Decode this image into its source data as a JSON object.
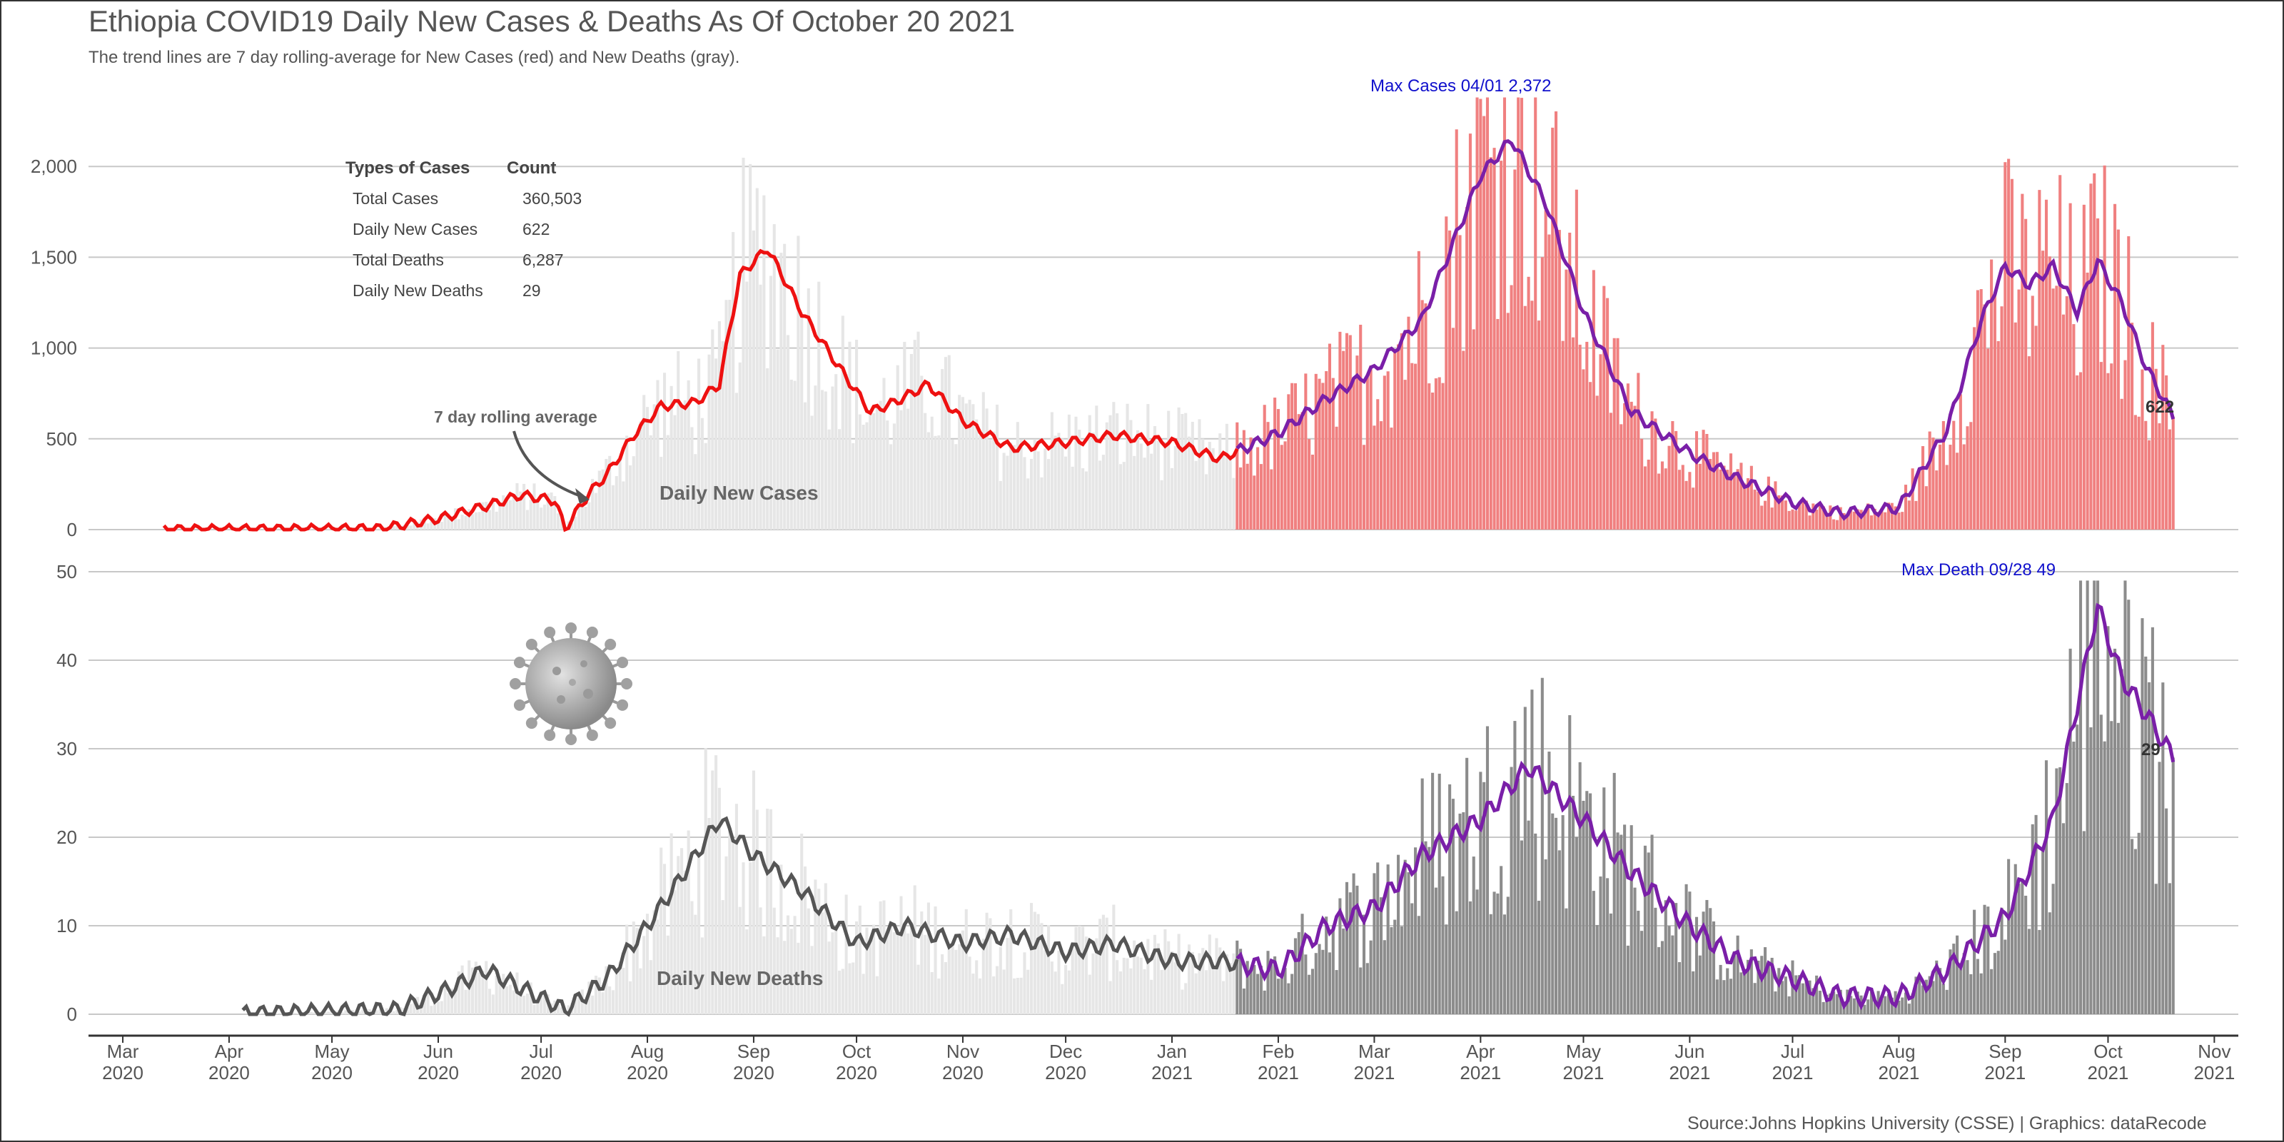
{
  "header": {
    "title": "Ethiopia COVID19 Daily New Cases & Deaths As Of October 20 2021",
    "subtitle": "The trend lines are 7 day rolling-average for New Cases (red) and New Deaths (gray)."
  },
  "summary_table": {
    "headers": [
      "Types of Cases",
      "Count"
    ],
    "rows": [
      {
        "label": "Total Cases",
        "value": "360,503"
      },
      {
        "label": "Daily New Cases",
        "value": "622"
      },
      {
        "label": "Total Deaths",
        "value": "6,287"
      },
      {
        "label": "Daily New Deaths",
        "value": "29"
      }
    ]
  },
  "annotations": {
    "max_cases": "Max Cases 04/01  2,372",
    "max_death": "Max Death 09/28  49",
    "rolling_avg": "7 day rolling average",
    "cases_label": "Daily New Cases",
    "deaths_label": "Daily New Deaths",
    "last_cases": "622",
    "last_deaths": "29"
  },
  "footer": {
    "source": "Source:Johns Hopkins University (CSSE) | Graphics: dataRecode"
  },
  "colors": {
    "cases_bar_recent": "#f08080",
    "cases_bar_old": "#e6e6e6",
    "cases_line_old": "#ee1111",
    "trend_recent": "#7a1fa8",
    "deaths_bar_recent": "#8c8c8c",
    "deaths_line_old": "#555555",
    "annotation_blue": "#1010cc"
  },
  "icons": {
    "virus": "coronavirus-icon"
  },
  "chart_data": [
    {
      "type": "bar",
      "title": "Daily New Cases",
      "x_start_date": "2020-03-13",
      "x_end_date": "2021-10-20",
      "ylim": [
        0,
        2400
      ],
      "yticks": [
        0,
        500,
        1000,
        1500,
        2000
      ],
      "ytick_labels": [
        "0",
        "500",
        "1,000",
        "1,500",
        "2,000"
      ],
      "grid": true,
      "smooth_anchor_dates": [
        "2020-03-13",
        "2020-04-15",
        "2020-05-15",
        "2020-06-01",
        "2020-06-15",
        "2020-06-25",
        "2020-07-05",
        "2020-07-08",
        "2020-07-15",
        "2020-07-20",
        "2020-07-28",
        "2020-08-05",
        "2020-08-15",
        "2020-08-22",
        "2020-08-28",
        "2020-09-05",
        "2020-09-15",
        "2020-09-25",
        "2020-10-05",
        "2020-10-12",
        "2020-10-22",
        "2020-11-01",
        "2020-11-15",
        "2020-12-01",
        "2020-12-15",
        "2021-01-01",
        "2021-01-15",
        "2021-02-01",
        "2021-02-15",
        "2021-03-01",
        "2021-03-15",
        "2021-04-01",
        "2021-04-10",
        "2021-04-20",
        "2021-05-01",
        "2021-05-15",
        "2021-06-01",
        "2021-06-15",
        "2021-07-01",
        "2021-07-15",
        "2021-08-01",
        "2021-08-15",
        "2021-08-25",
        "2021-09-01",
        "2021-09-08",
        "2021-09-15",
        "2021-09-22",
        "2021-09-28",
        "2021-10-05",
        "2021-10-12",
        "2021-10-20"
      ],
      "smooth_anchor_values": [
        0,
        2,
        5,
        60,
        130,
        190,
        160,
        5,
        200,
        300,
        520,
        680,
        700,
        800,
        1400,
        1550,
        1200,
        920,
        650,
        700,
        800,
        600,
        450,
        480,
        520,
        480,
        390,
        530,
        720,
        880,
        1160,
        1950,
        2150,
        1800,
        1200,
        650,
        420,
        280,
        150,
        90,
        120,
        550,
        1150,
        1450,
        1350,
        1450,
        1200,
        1480,
        1250,
        900,
        622
      ],
      "cases_series": [
        {
          "name": "Daily New Cases",
          "color": "red"
        },
        {
          "name": "7 day rolling average",
          "color": "purple"
        }
      ],
      "max": {
        "date": "2021-04-01",
        "value": 2372
      },
      "last_value": 622
    },
    {
      "type": "bar",
      "title": "Daily New Deaths",
      "x_start_date": "2020-03-13",
      "x_end_date": "2021-10-20",
      "ylim": [
        0,
        50
      ],
      "yticks": [
        0,
        10,
        20,
        30,
        40,
        50
      ],
      "ytick_labels": [
        "0",
        "10",
        "20",
        "30",
        "40",
        "50"
      ],
      "grid": true,
      "smooth_anchor_dates": [
        "2020-04-05",
        "2020-05-20",
        "2020-06-05",
        "2020-06-15",
        "2020-06-25",
        "2020-07-08",
        "2020-07-20",
        "2020-08-01",
        "2020-08-10",
        "2020-08-22",
        "2020-09-01",
        "2020-09-15",
        "2020-10-01",
        "2020-10-15",
        "2020-11-01",
        "2020-11-15",
        "2020-12-01",
        "2020-12-15",
        "2021-01-01",
        "2021-01-15",
        "2021-02-01",
        "2021-02-15",
        "2021-03-01",
        "2021-03-15",
        "2021-04-01",
        "2021-04-15",
        "2021-05-01",
        "2021-05-15",
        "2021-06-01",
        "2021-06-15",
        "2021-07-01",
        "2021-07-15",
        "2021-08-01",
        "2021-08-15",
        "2021-09-01",
        "2021-09-15",
        "2021-09-28",
        "2021-10-05",
        "2021-10-12",
        "2021-10-20"
      ],
      "smooth_anchor_values": [
        0,
        0.5,
        3,
        5,
        3,
        0.5,
        4,
        10,
        15,
        22,
        18,
        14,
        8,
        10,
        8,
        9,
        7,
        8,
        6,
        6,
        5,
        10,
        12,
        18,
        22,
        28,
        22,
        16,
        10,
        6,
        4,
        2,
        2,
        5,
        11,
        22,
        46,
        38,
        34,
        29
      ],
      "deaths_series": [
        {
          "name": "Daily New Deaths",
          "color": "gray"
        },
        {
          "name": "7 day rolling average",
          "color": "purple"
        }
      ],
      "max": {
        "date": "2021-09-28",
        "value": 49
      },
      "last_value": 29
    }
  ],
  "x_axis": {
    "ticks": [
      {
        "month": "Mar",
        "year": "2020"
      },
      {
        "month": "Apr",
        "year": "2020"
      },
      {
        "month": "May",
        "year": "2020"
      },
      {
        "month": "Jun",
        "year": "2020"
      },
      {
        "month": "Jul",
        "year": "2020"
      },
      {
        "month": "Aug",
        "year": "2020"
      },
      {
        "month": "Sep",
        "year": "2020"
      },
      {
        "month": "Oct",
        "year": "2020"
      },
      {
        "month": "Nov",
        "year": "2020"
      },
      {
        "month": "Dec",
        "year": "2020"
      },
      {
        "month": "Jan",
        "year": "2021"
      },
      {
        "month": "Feb",
        "year": "2021"
      },
      {
        "month": "Mar",
        "year": "2021"
      },
      {
        "month": "Apr",
        "year": "2021"
      },
      {
        "month": "May",
        "year": "2021"
      },
      {
        "month": "Jun",
        "year": "2021"
      },
      {
        "month": "Jul",
        "year": "2021"
      },
      {
        "month": "Aug",
        "year": "2021"
      },
      {
        "month": "Sep",
        "year": "2021"
      },
      {
        "month": "Oct",
        "year": "2021"
      },
      {
        "month": "Nov",
        "year": "2021"
      }
    ]
  }
}
